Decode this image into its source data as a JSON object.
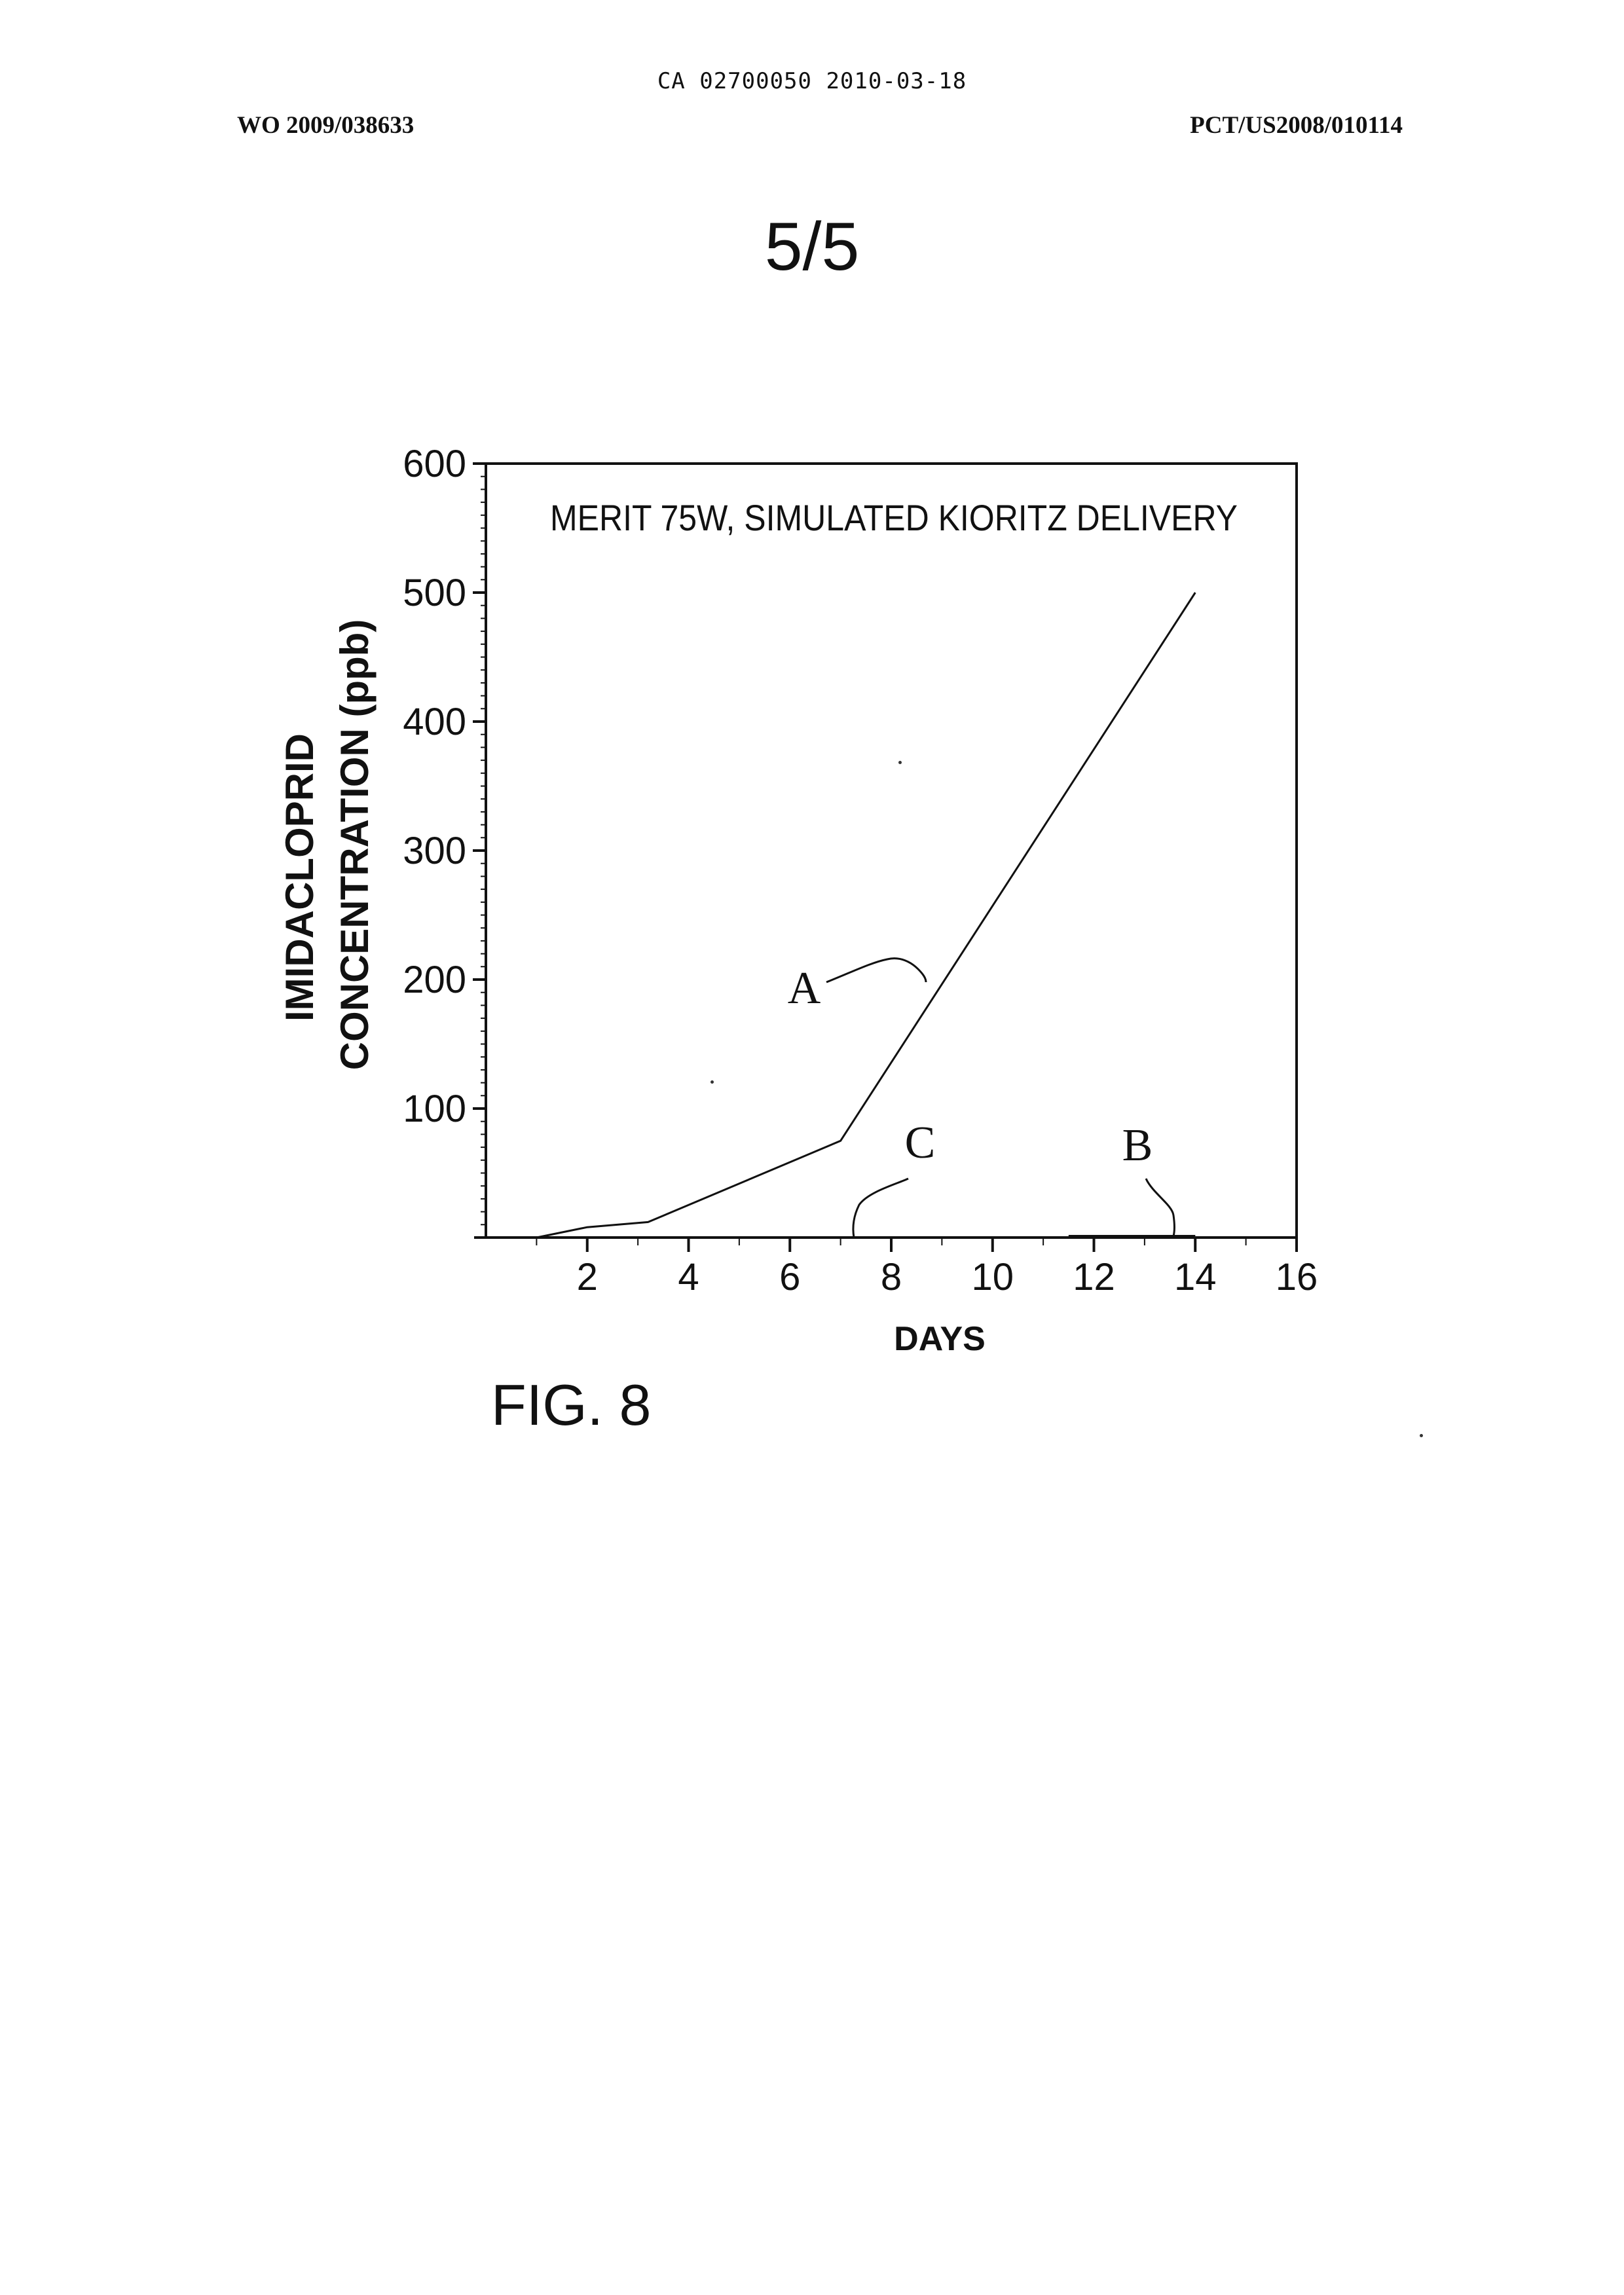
{
  "header": {
    "doc_number": "CA 02700050 2010-03-18",
    "left": "WO 2009/038633",
    "right": "PCT/US2008/010114"
  },
  "sheet_label": "5/5",
  "figure_label": "FIG. 8",
  "chart_data": {
    "type": "line",
    "title": "MERIT 75W, SIMULATED KIORITZ  DELIVERY",
    "xlabel": "DAYS",
    "ylabel_line1": "IMIDACLOPRID",
    "ylabel_line2": "CONCENTRATION (ppb)",
    "xlim": [
      0,
      16
    ],
    "ylim": [
      0,
      600
    ],
    "x_ticks": [
      2,
      4,
      6,
      8,
      10,
      12,
      14,
      16
    ],
    "y_ticks": [
      100,
      200,
      300,
      400,
      500,
      600
    ],
    "grid": false,
    "series": [
      {
        "name": "A",
        "x": [
          1,
          2,
          3.2,
          7,
          14
        ],
        "y": [
          0,
          8,
          12,
          75,
          500
        ]
      },
      {
        "name": "B",
        "x": [
          11.5,
          14
        ],
        "y": [
          1,
          1
        ]
      },
      {
        "name": "C",
        "x": [
          1,
          14
        ],
        "y": [
          0,
          0
        ]
      }
    ]
  },
  "colors": {
    "ink": "#111111",
    "background": "#ffffff"
  }
}
